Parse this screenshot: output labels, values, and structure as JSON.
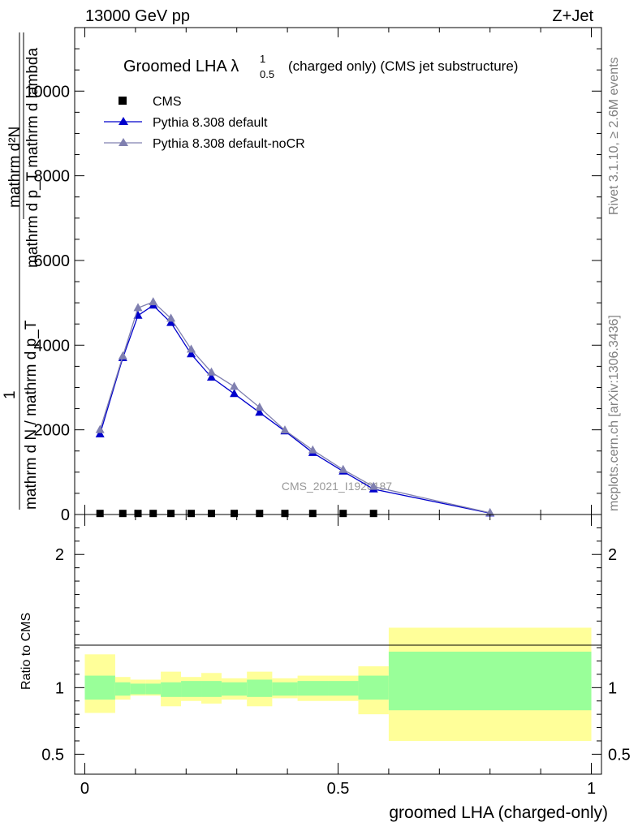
{
  "header": {
    "energy": "13000 GeV pp",
    "process": "Z+Jet"
  },
  "side_text": {
    "rivet": "Rivet 3.1.10, ≥ 2.6M events",
    "mcplots": "mcplots.cern.ch [arXiv:1306.3436]"
  },
  "chart_data": [
    {
      "type": "line",
      "title": "Groomed LHA λ",
      "title_sup": "1",
      "title_sub": "0.5",
      "title_rest": "(charged only) (CMS jet substructure)",
      "watermark": "CMS_2021_I1920187",
      "ylabel_numerator": "mathrm d²N",
      "ylabel_denominator_top": "mathrm d p_T mathrm d lambda",
      "ylabel_one": "1",
      "ylabel_denominator": "mathrm d N / mathrm d p_T",
      "xlim": [
        -0.02,
        1.02
      ],
      "ylim": [
        0,
        11500
      ],
      "yticks": [
        0,
        2000,
        4000,
        6000,
        8000,
        10000
      ],
      "ytick_labels": [
        "0",
        "2000",
        "4000",
        "6000",
        "8000",
        "10000"
      ],
      "legend_position": "top-left",
      "series": [
        {
          "name": "CMS",
          "marker": "square",
          "color": "#000000",
          "x": [
            0.03,
            0.075,
            0.105,
            0.135,
            0.17,
            0.21,
            0.25,
            0.295,
            0.345,
            0.395,
            0.45,
            0.51,
            0.57
          ],
          "y": [
            25,
            25,
            25,
            25,
            25,
            25,
            25,
            25,
            25,
            25,
            25,
            25,
            25
          ]
        },
        {
          "name": "Pythia 8.308 default",
          "marker": "triangle",
          "color": "#0000cc",
          "x": [
            0.03,
            0.075,
            0.105,
            0.135,
            0.17,
            0.21,
            0.25,
            0.295,
            0.345,
            0.395,
            0.45,
            0.51,
            0.57,
            0.8
          ],
          "y": [
            1900,
            3700,
            4700,
            4940,
            4530,
            3790,
            3240,
            2850,
            2410,
            1970,
            1460,
            1020,
            600,
            30
          ]
        },
        {
          "name": "Pythia 8.308 default-noCR",
          "marker": "triangle",
          "color": "#8080b0",
          "x": [
            0.03,
            0.075,
            0.105,
            0.135,
            0.17,
            0.21,
            0.25,
            0.295,
            0.345,
            0.395,
            0.45,
            0.51,
            0.57,
            0.8
          ],
          "y": [
            2000,
            3740,
            4880,
            5020,
            4630,
            3900,
            3360,
            3020,
            2530,
            1990,
            1520,
            1060,
            660,
            40
          ]
        }
      ]
    },
    {
      "type": "area",
      "ylabel": "Ratio to CMS",
      "xlabel": "groomed LHA (charged-only)",
      "xlim": [
        -0.02,
        1.02
      ],
      "ylim": [
        0.35,
        2.3
      ],
      "xticks": [
        0,
        0.5,
        1
      ],
      "xtick_labels": [
        "0",
        "0.5",
        "1"
      ],
      "yticks": [
        0.5,
        1,
        2
      ],
      "ytick_labels": [
        "0.5",
        "1",
        "2"
      ],
      "bins": [
        {
          "x0": 0.0,
          "x1": 0.06,
          "stat": [
            0.91,
            1.09
          ],
          "total": [
            0.81,
            1.25
          ]
        },
        {
          "x0": 0.06,
          "x1": 0.09,
          "stat": [
            0.94,
            1.04
          ],
          "total": [
            0.91,
            1.08
          ]
        },
        {
          "x0": 0.09,
          "x1": 0.12,
          "stat": [
            0.95,
            1.03
          ],
          "total": [
            0.94,
            1.06
          ]
        },
        {
          "x0": 0.12,
          "x1": 0.15,
          "stat": [
            0.95,
            1.03
          ],
          "total": [
            0.94,
            1.06
          ]
        },
        {
          "x0": 0.15,
          "x1": 0.19,
          "stat": [
            0.93,
            1.04
          ],
          "total": [
            0.86,
            1.12
          ]
        },
        {
          "x0": 0.19,
          "x1": 0.23,
          "stat": [
            0.93,
            1.05
          ],
          "total": [
            0.9,
            1.08
          ]
        },
        {
          "x0": 0.23,
          "x1": 0.27,
          "stat": [
            0.93,
            1.05
          ],
          "total": [
            0.88,
            1.11
          ]
        },
        {
          "x0": 0.27,
          "x1": 0.32,
          "stat": [
            0.94,
            1.04
          ],
          "total": [
            0.91,
            1.07
          ]
        },
        {
          "x0": 0.32,
          "x1": 0.37,
          "stat": [
            0.93,
            1.06
          ],
          "total": [
            0.86,
            1.12
          ]
        },
        {
          "x0": 0.37,
          "x1": 0.42,
          "stat": [
            0.94,
            1.04
          ],
          "total": [
            0.92,
            1.07
          ]
        },
        {
          "x0": 0.42,
          "x1": 0.48,
          "stat": [
            0.94,
            1.05
          ],
          "total": [
            0.9,
            1.09
          ]
        },
        {
          "x0": 0.48,
          "x1": 0.54,
          "stat": [
            0.94,
            1.05
          ],
          "total": [
            0.9,
            1.09
          ]
        },
        {
          "x0": 0.54,
          "x1": 0.6,
          "stat": [
            0.91,
            1.09
          ],
          "total": [
            0.8,
            1.16
          ]
        },
        {
          "x0": 0.6,
          "x1": 1.0,
          "stat": [
            0.83,
            1.27
          ],
          "total": [
            0.6,
            1.45
          ]
        }
      ],
      "reference_line": 1,
      "colors": {
        "stat": "#99ff99",
        "total": "#ffff99"
      }
    }
  ]
}
